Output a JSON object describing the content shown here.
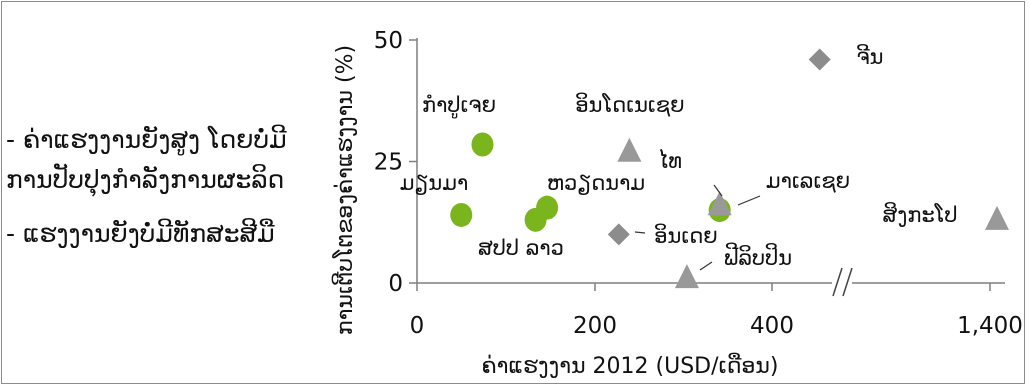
{
  "side_notes": {
    "line1": "- ຄ່າແຮງງານຍັງສູງ ໂດຍບໍ່ມີ",
    "line2": "ການປັບປຸງກຳລັງການຜະລິດ",
    "line3": "- ແຮງງານຍັງບໍ່ມີທັກສະສີມື"
  },
  "chart_data": {
    "type": "scatter",
    "title": "",
    "xlabel": "ຄ່າແຮງງານ 2012 (USD/ເດືອນ)",
    "ylabel": "ການເຕີບໂຕຂອງຄ່າແຮງງານ (%)",
    "x_ticks": [
      "0",
      "200",
      "400",
      "1,400"
    ],
    "y_ticks": [
      "0",
      "25",
      "50"
    ],
    "x_axis_break": "between 400 and 1,400",
    "ylim": [
      0,
      50
    ],
    "grid": false,
    "points": [
      {
        "label": "ກຳປູເຈຍ",
        "x": 74,
        "y": 28.5,
        "marker": "circle",
        "color": "#7ab51d"
      },
      {
        "label": "ມຽນມາ",
        "x": 50,
        "y": 14,
        "marker": "circle",
        "color": "#7ab51d"
      },
      {
        "label": "ສປປ ລາວ",
        "x": 134,
        "y": 13,
        "marker": "circle",
        "color": "#7ab51d"
      },
      {
        "label": "ຫວຽດນາມ",
        "x": 147,
        "y": 15.5,
        "marker": "circle",
        "color": "#7ab51d"
      },
      {
        "label": "ມາເລເຊຍ",
        "x": 342,
        "y": 15,
        "marker": "circle",
        "color": "#7ab51d"
      },
      {
        "label": "ອິນໂດເນເຊຍ",
        "x": 240,
        "y": 27,
        "marker": "triangle",
        "color": "#999999"
      },
      {
        "label": "ໄທ",
        "x": 342,
        "y": 16,
        "marker": "triangle",
        "color": "#999999"
      },
      {
        "label": "ຟີລິບປິນ",
        "x": 305,
        "y": 1,
        "marker": "triangle",
        "color": "#999999"
      },
      {
        "label": "ສິງກະໂປ",
        "x": 1410,
        "y": 13,
        "marker": "triangle",
        "color": "#999999"
      },
      {
        "label": "ອິນເດຍ",
        "x": 228,
        "y": 10,
        "marker": "diamond",
        "color": "#8c8c8c"
      },
      {
        "label": "ຈີນ",
        "x": 455,
        "y": 46,
        "marker": "diamond",
        "color": "#8c8c8c"
      }
    ]
  }
}
